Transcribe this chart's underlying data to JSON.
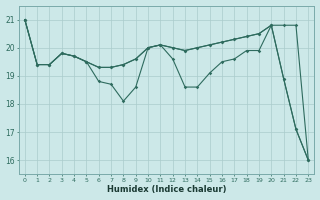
{
  "x": [
    0,
    1,
    2,
    3,
    4,
    5,
    6,
    7,
    8,
    9,
    10,
    11,
    12,
    13,
    14,
    15,
    16,
    17,
    18,
    19,
    20,
    21,
    22,
    23
  ],
  "line1": [
    21.0,
    19.4,
    19.4,
    19.8,
    19.7,
    19.5,
    19.3,
    19.3,
    19.4,
    19.6,
    20.0,
    20.1,
    20.0,
    19.9,
    20.0,
    20.1,
    20.2,
    20.3,
    20.4,
    20.5,
    20.8,
    20.8,
    20.8,
    16.0
  ],
  "line2": [
    21.0,
    19.4,
    19.4,
    19.8,
    19.7,
    19.5,
    19.3,
    19.3,
    19.4,
    19.6,
    20.0,
    20.1,
    20.0,
    19.9,
    20.0,
    20.1,
    20.2,
    20.3,
    20.4,
    20.5,
    20.8,
    18.9,
    17.1,
    16.0
  ],
  "line3": [
    21.0,
    19.4,
    19.4,
    19.8,
    19.7,
    19.5,
    18.8,
    18.7,
    18.1,
    18.6,
    20.0,
    20.1,
    19.6,
    18.6,
    18.6,
    19.1,
    19.5,
    19.6,
    19.9,
    19.9,
    20.8,
    18.9,
    17.1,
    16.0
  ],
  "bg_color": "#cce8e8",
  "line_color": "#2e6b5e",
  "grid_color": "#aacccc",
  "xlabel": "Humidex (Indice chaleur)",
  "ylabel_ticks": [
    16,
    17,
    18,
    19,
    20,
    21
  ],
  "ylim": [
    15.5,
    21.5
  ],
  "xlim": [
    -0.5,
    23.5
  ]
}
